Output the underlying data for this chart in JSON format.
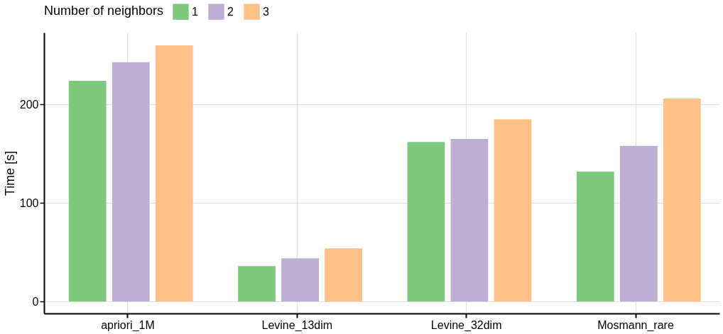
{
  "chart_data": {
    "type": "bar",
    "ylabel": "Time [s]",
    "legend_title": "Number of neighbors",
    "legend": "top left",
    "grid": true,
    "categories": [
      "apriori_1M",
      "Levine_13dim",
      "Levine_32dim",
      "Mosmann_rare"
    ],
    "series": [
      {
        "name": "1",
        "color": "#7fc97f",
        "values": [
          224,
          36,
          162,
          132
        ]
      },
      {
        "name": "2",
        "color": "#beaed4",
        "values": [
          243,
          44,
          165,
          158
        ]
      },
      {
        "name": "3",
        "color": "#fdc086",
        "values": [
          260,
          54,
          185,
          206
        ]
      }
    ],
    "ylim": [
      -12,
      273
    ],
    "yticks": [
      0,
      100,
      200
    ]
  }
}
